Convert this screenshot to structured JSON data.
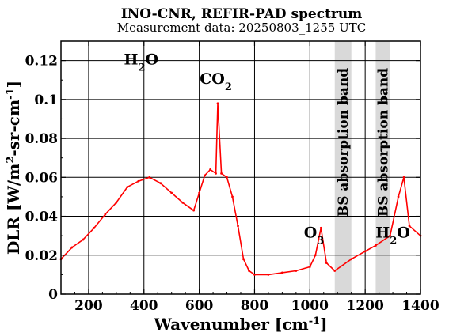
{
  "chart_data": {
    "type": "line",
    "title": "INO-CNR, REFIR-PAD spectrum",
    "subtitle": "Measurement data: 20250803_1255 UTC",
    "xlabel": {
      "main": "Wavenumber [cm",
      "sup": "-1",
      "end": "]"
    },
    "ylabel": {
      "p1": "DLR [W/m",
      "sup1": "2",
      "p2": "-sr-cm",
      "sup2": "-1",
      "p3": "]"
    },
    "xlim": [
      100,
      1400
    ],
    "ylim": [
      0,
      0.13
    ],
    "xticks": [
      200,
      400,
      600,
      800,
      1000,
      1200,
      1400
    ],
    "xtick_labels": [
      "200",
      "400",
      "600",
      "800",
      "1000",
      "1200",
      "1400"
    ],
    "yticks": [
      0,
      0.02,
      0.04,
      0.06,
      0.08,
      0.1,
      0.12
    ],
    "ytick_labels": [
      "0",
      "0.02",
      "0.04",
      "0.06",
      "0.08",
      "0.1",
      "0.12"
    ],
    "grid": true,
    "series_color": "#ff0000",
    "bands": [
      {
        "x": [
          1090,
          1150
        ],
        "label": "BS absorption band",
        "color": "#d9d9d9"
      },
      {
        "x": [
          1238,
          1290
        ],
        "label": "BS absorption band",
        "color": "#d9d9d9"
      }
    ],
    "annotations": {
      "h2o_left": {
        "base": "H",
        "sub": "2",
        "end": "O",
        "x": 390,
        "y": 0.118
      },
      "co2": {
        "base": "CO",
        "sub": "2",
        "x": 660,
        "y": 0.108
      },
      "o3": {
        "base": "O",
        "sub": "3",
        "x": 1015,
        "y": 0.029
      },
      "h2o_right": {
        "base": "H",
        "sub": "2",
        "end": "O",
        "x": 1300,
        "y": 0.029
      }
    },
    "series": [
      {
        "values": [
          [
            100,
            0.018
          ],
          [
            140,
            0.024
          ],
          [
            180,
            0.028
          ],
          [
            220,
            0.034
          ],
          [
            260,
            0.041
          ],
          [
            300,
            0.047
          ],
          [
            340,
            0.055
          ],
          [
            380,
            0.058
          ],
          [
            420,
            0.06
          ],
          [
            460,
            0.057
          ],
          [
            500,
            0.052
          ],
          [
            540,
            0.047
          ],
          [
            580,
            0.043
          ],
          [
            600,
            0.052
          ],
          [
            620,
            0.061
          ],
          [
            640,
            0.064
          ],
          [
            660,
            0.062
          ],
          [
            667,
            0.098
          ],
          [
            680,
            0.062
          ],
          [
            700,
            0.06
          ],
          [
            720,
            0.05
          ],
          [
            740,
            0.035
          ],
          [
            760,
            0.018
          ],
          [
            780,
            0.012
          ],
          [
            800,
            0.01
          ],
          [
            850,
            0.01
          ],
          [
            900,
            0.011
          ],
          [
            950,
            0.012
          ],
          [
            1000,
            0.014
          ],
          [
            1020,
            0.02
          ],
          [
            1040,
            0.034
          ],
          [
            1060,
            0.016
          ],
          [
            1090,
            0.012
          ],
          [
            1150,
            0.018
          ],
          [
            1200,
            0.022
          ],
          [
            1238,
            0.025
          ],
          [
            1290,
            0.03
          ],
          [
            1320,
            0.05
          ],
          [
            1340,
            0.06
          ],
          [
            1360,
            0.035
          ],
          [
            1400,
            0.03
          ]
        ]
      }
    ]
  }
}
